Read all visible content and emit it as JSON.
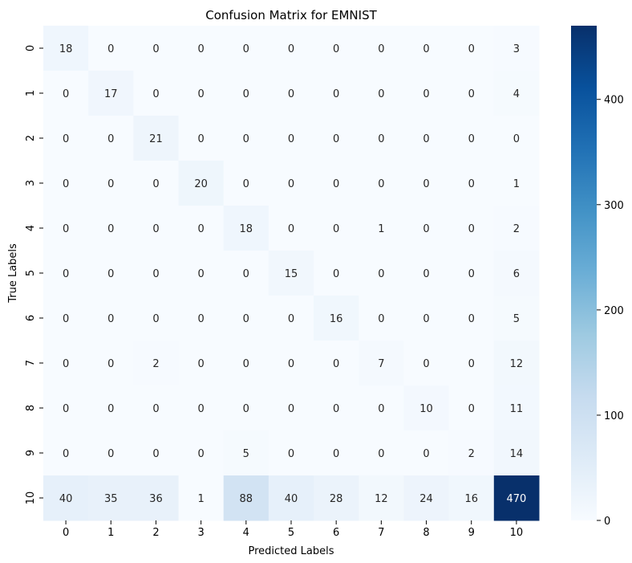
{
  "chart_data": {
    "type": "heatmap",
    "title": "Confusion Matrix for EMNIST",
    "xlabel": "Predicted Labels",
    "ylabel": "True Labels",
    "x_categories": [
      "0",
      "1",
      "2",
      "3",
      "4",
      "5",
      "6",
      "7",
      "8",
      "9",
      "10"
    ],
    "y_categories": [
      "0",
      "1",
      "2",
      "3",
      "4",
      "5",
      "6",
      "7",
      "8",
      "9",
      "10"
    ],
    "values": [
      [
        18,
        0,
        0,
        0,
        0,
        0,
        0,
        0,
        0,
        0,
        3
      ],
      [
        0,
        17,
        0,
        0,
        0,
        0,
        0,
        0,
        0,
        0,
        4
      ],
      [
        0,
        0,
        21,
        0,
        0,
        0,
        0,
        0,
        0,
        0,
        0
      ],
      [
        0,
        0,
        0,
        20,
        0,
        0,
        0,
        0,
        0,
        0,
        1
      ],
      [
        0,
        0,
        0,
        0,
        18,
        0,
        0,
        1,
        0,
        0,
        2
      ],
      [
        0,
        0,
        0,
        0,
        0,
        15,
        0,
        0,
        0,
        0,
        6
      ],
      [
        0,
        0,
        0,
        0,
        0,
        0,
        16,
        0,
        0,
        0,
        5
      ],
      [
        0,
        0,
        2,
        0,
        0,
        0,
        0,
        7,
        0,
        0,
        12
      ],
      [
        0,
        0,
        0,
        0,
        0,
        0,
        0,
        0,
        10,
        0,
        11
      ],
      [
        0,
        0,
        0,
        0,
        5,
        0,
        0,
        0,
        0,
        2,
        14
      ],
      [
        40,
        35,
        36,
        1,
        88,
        40,
        28,
        12,
        24,
        16,
        470
      ]
    ],
    "colorbar": {
      "range": [
        0,
        470
      ],
      "ticks": [
        0,
        100,
        200,
        300,
        400
      ],
      "colormap": "Blues",
      "colors": [
        "#f7fbff",
        "#deebf7",
        "#c6dbef",
        "#9ecae1",
        "#6baed6",
        "#4292c6",
        "#2171b5",
        "#08519c",
        "#08306b"
      ]
    },
    "annotations": "cell counts shown in each cell",
    "text_light_color": "#ffffff",
    "text_dark_color": "#262626"
  }
}
